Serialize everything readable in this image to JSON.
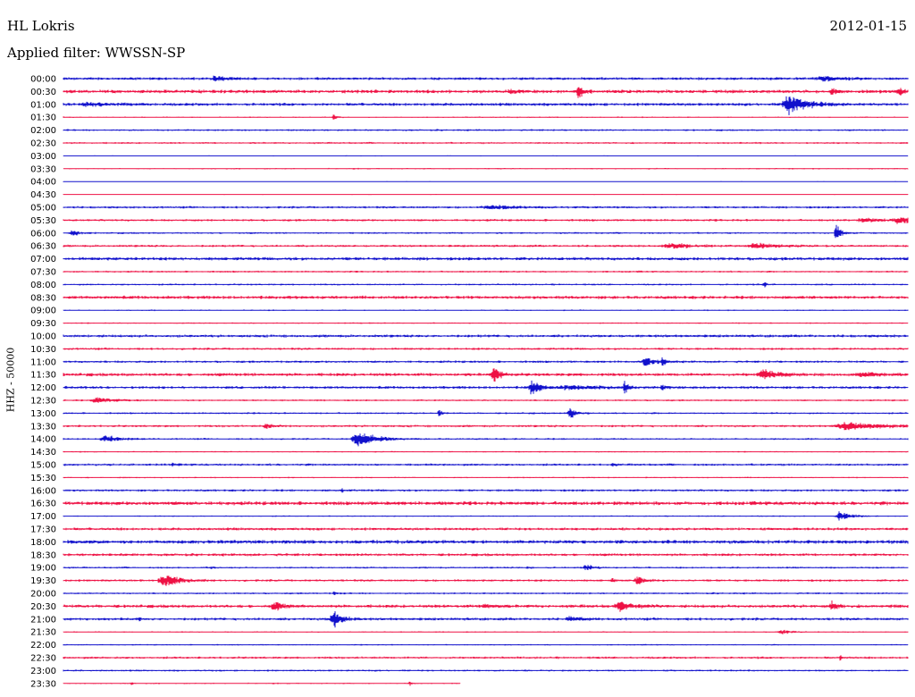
{
  "header": {
    "station": "HL Lokris",
    "date": "2012-01-15",
    "filter": "Applied filter: WWSSN-SP"
  },
  "chart_data": {
    "type": "line",
    "subtype": "helicorder",
    "ylabel": "HHZ - 50000",
    "row_labels": [
      "00:00",
      "00:30",
      "01:00",
      "01:30",
      "02:00",
      "02:30",
      "03:00",
      "03:30",
      "04:00",
      "04:30",
      "05:00",
      "05:30",
      "06:00",
      "06:30",
      "07:00",
      "07:30",
      "08:00",
      "08:30",
      "09:00",
      "09:30",
      "10:00",
      "10:30",
      "11:00",
      "11:30",
      "12:00",
      "12:30",
      "13:00",
      "13:30",
      "14:00",
      "14:30",
      "15:00",
      "15:30",
      "16:00",
      "16:30",
      "17:00",
      "17:30",
      "18:00",
      "18:30",
      "19:00",
      "19:30",
      "20:00",
      "20:30",
      "21:00",
      "21:30",
      "22:00",
      "22:30",
      "23:00",
      "23:30"
    ],
    "row_minutes": 30,
    "trace_colors": [
      "#1010cc",
      "#ee1144"
    ],
    "trace_end_fraction_last_row": 0.47,
    "noise_levels": [
      1.2,
      1.5,
      1.3,
      0.6,
      0.8,
      0.8,
      0.4,
      0.6,
      0.4,
      0.4,
      1.0,
      1.0,
      0.8,
      1.0,
      1.4,
      0.8,
      0.8,
      1.4,
      0.6,
      0.6,
      1.2,
      1.0,
      1.0,
      1.4,
      1.2,
      0.8,
      0.8,
      1.0,
      0.8,
      0.6,
      1.0,
      0.6,
      1.0,
      1.6,
      0.6,
      1.2,
      1.6,
      1.2,
      0.8,
      1.0,
      0.8,
      1.4,
      1.2,
      0.6,
      0.6,
      1.0,
      0.8,
      0.6
    ],
    "events": [
      {
        "row": 0,
        "t": 0.18,
        "amp": 3,
        "dur": 0.015
      },
      {
        "row": 0,
        "t": 0.9,
        "amp": 3,
        "dur": 0.02
      },
      {
        "row": 1,
        "t": 0.61,
        "amp": 10,
        "dur": 0.006
      },
      {
        "row": 1,
        "t": 0.53,
        "amp": 2,
        "dur": 0.01
      },
      {
        "row": 1,
        "t": 0.91,
        "amp": 4,
        "dur": 0.006
      },
      {
        "row": 1,
        "t": 0.99,
        "amp": 3,
        "dur": 0.01
      },
      {
        "row": 2,
        "t": 0.86,
        "amp": 12,
        "dur": 0.025
      },
      {
        "row": 2,
        "t": 0.03,
        "amp": 2,
        "dur": 0.03
      },
      {
        "row": 3,
        "t": 0.32,
        "amp": 4,
        "dur": 0.004
      },
      {
        "row": 10,
        "t": 0.51,
        "amp": 2,
        "dur": 0.04
      },
      {
        "row": 11,
        "t": 0.99,
        "amp": 4,
        "dur": 0.02
      },
      {
        "row": 11,
        "t": 0.95,
        "amp": 2,
        "dur": 0.03
      },
      {
        "row": 12,
        "t": 0.915,
        "amp": 12,
        "dur": 0.006
      },
      {
        "row": 12,
        "t": 0.01,
        "amp": 4,
        "dur": 0.01
      },
      {
        "row": 13,
        "t": 0.72,
        "amp": 3,
        "dur": 0.03
      },
      {
        "row": 13,
        "t": 0.82,
        "amp": 3,
        "dur": 0.03
      },
      {
        "row": 16,
        "t": 0.83,
        "amp": 3,
        "dur": 0.005
      },
      {
        "row": 22,
        "t": 0.69,
        "amp": 6,
        "dur": 0.012
      },
      {
        "row": 22,
        "t": 0.71,
        "amp": 4,
        "dur": 0.006
      },
      {
        "row": 23,
        "t": 0.51,
        "amp": 12,
        "dur": 0.008
      },
      {
        "row": 23,
        "t": 0.83,
        "amp": 6,
        "dur": 0.02
      },
      {
        "row": 23,
        "t": 0.95,
        "amp": 2,
        "dur": 0.03
      },
      {
        "row": 24,
        "t": 0.555,
        "amp": 10,
        "dur": 0.01
      },
      {
        "row": 24,
        "t": 0.665,
        "amp": 8,
        "dur": 0.006
      },
      {
        "row": 24,
        "t": 0.6,
        "amp": 2,
        "dur": 0.05
      },
      {
        "row": 24,
        "t": 0.71,
        "amp": 2,
        "dur": 0.008
      },
      {
        "row": 25,
        "t": 0.04,
        "amp": 4,
        "dur": 0.02
      },
      {
        "row": 26,
        "t": 0.6,
        "amp": 8,
        "dur": 0.008
      },
      {
        "row": 26,
        "t": 0.445,
        "amp": 4,
        "dur": 0.005
      },
      {
        "row": 27,
        "t": 0.93,
        "amp": 4,
        "dur": 0.05
      },
      {
        "row": 27,
        "t": 0.24,
        "amp": 3,
        "dur": 0.01
      },
      {
        "row": 28,
        "t": 0.35,
        "amp": 9,
        "dur": 0.025
      },
      {
        "row": 28,
        "t": 0.05,
        "amp": 4,
        "dur": 0.02
      },
      {
        "row": 30,
        "t": 0.13,
        "amp": 2,
        "dur": 0.004
      },
      {
        "row": 30,
        "t": 0.65,
        "amp": 2,
        "dur": 0.004
      },
      {
        "row": 32,
        "t": 0.33,
        "amp": 2,
        "dur": 0.003
      },
      {
        "row": 34,
        "t": 0.92,
        "amp": 6,
        "dur": 0.015
      },
      {
        "row": 38,
        "t": 0.62,
        "amp": 3,
        "dur": 0.015
      },
      {
        "row": 38,
        "t": 0.175,
        "amp": 2,
        "dur": 0.004
      },
      {
        "row": 38,
        "t": 0.55,
        "amp": 2,
        "dur": 0.004
      },
      {
        "row": 39,
        "t": 0.12,
        "amp": 8,
        "dur": 0.02
      },
      {
        "row": 39,
        "t": 0.68,
        "amp": 6,
        "dur": 0.01
      },
      {
        "row": 39,
        "t": 0.65,
        "amp": 2,
        "dur": 0.005
      },
      {
        "row": 40,
        "t": 0.32,
        "amp": 2,
        "dur": 0.005
      },
      {
        "row": 41,
        "t": 0.25,
        "amp": 5,
        "dur": 0.012
      },
      {
        "row": 41,
        "t": 0.5,
        "amp": 3,
        "dur": 0.012
      },
      {
        "row": 41,
        "t": 0.66,
        "amp": 5,
        "dur": 0.02
      },
      {
        "row": 41,
        "t": 0.91,
        "amp": 5,
        "dur": 0.008
      },
      {
        "row": 42,
        "t": 0.32,
        "amp": 11,
        "dur": 0.012
      },
      {
        "row": 42,
        "t": 0.6,
        "amp": 3,
        "dur": 0.012
      },
      {
        "row": 42,
        "t": 0.09,
        "amp": 2,
        "dur": 0.003
      },
      {
        "row": 43,
        "t": 0.85,
        "amp": 3,
        "dur": 0.012
      },
      {
        "row": 45,
        "t": 0.92,
        "amp": 3,
        "dur": 0.003
      },
      {
        "row": 47,
        "t": 0.41,
        "amp": 6,
        "dur": 0.002
      },
      {
        "row": 47,
        "t": 0.08,
        "amp": 3,
        "dur": 0.002
      }
    ]
  }
}
